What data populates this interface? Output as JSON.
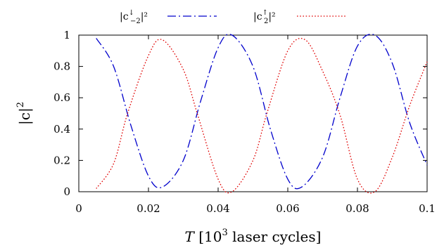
{
  "chart_data": {
    "type": "line",
    "xlabel": "T [10^3 laser cycles]",
    "ylabel": "|c|^2",
    "xlim": [
      0,
      0.1
    ],
    "ylim": [
      0,
      1
    ],
    "x_ticks": [
      "0",
      "0.02",
      "0.04",
      "0.06",
      "0.08",
      "0.1"
    ],
    "y_ticks": [
      "0",
      "0.2",
      "0.4",
      "0.6",
      "0.8",
      "1"
    ],
    "legend_position": "top, outside plot",
    "series": [
      {
        "name": "|c↓−2|²",
        "color": "#0000cc",
        "style": "dash-dot",
        "x": [
          0.005,
          0.01,
          0.015,
          0.02,
          0.024,
          0.03,
          0.035,
          0.04,
          0.044,
          0.05,
          0.055,
          0.06,
          0.064,
          0.07,
          0.075,
          0.08,
          0.085,
          0.09,
          0.095,
          0.1
        ],
        "y": [
          0.98,
          0.8,
          0.42,
          0.1,
          0.03,
          0.2,
          0.58,
          0.92,
          1.0,
          0.8,
          0.4,
          0.08,
          0.03,
          0.22,
          0.6,
          0.93,
          1.0,
          0.82,
          0.44,
          0.17
        ]
      },
      {
        "name": "|c↑2|²",
        "color": "#e00000",
        "style": "dotted",
        "x": [
          0.005,
          0.01,
          0.014,
          0.02,
          0.024,
          0.03,
          0.034,
          0.04,
          0.044,
          0.05,
          0.054,
          0.06,
          0.065,
          0.07,
          0.075,
          0.08,
          0.085,
          0.09,
          0.095,
          0.1
        ],
        "y": [
          0.02,
          0.18,
          0.5,
          0.87,
          0.97,
          0.78,
          0.5,
          0.08,
          0.0,
          0.2,
          0.5,
          0.9,
          0.97,
          0.77,
          0.49,
          0.08,
          0.0,
          0.22,
          0.55,
          0.83
        ]
      }
    ]
  }
}
